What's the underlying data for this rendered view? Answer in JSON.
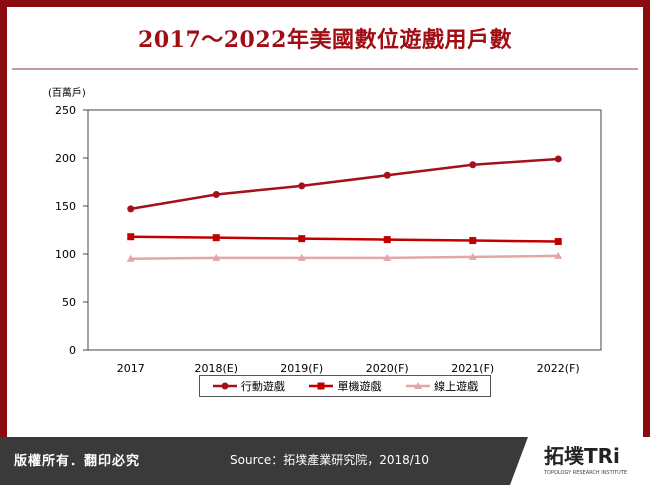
{
  "title": "2017～2022年美國數位遊戲用戶數",
  "footer": {
    "rights": "版權所有．翻印必究",
    "source": "Source：拓墣產業研究院，2018/10"
  },
  "logo": {
    "name": "拓墣TRi",
    "tagline": "TOPOLOGY RESEARCH INSTITUTE"
  },
  "colors": {
    "frame": "#8a0c10",
    "title": "#a00d12",
    "series_dark": "#a3121c",
    "series_red": "#c00000",
    "series_pink": "#e3a6a6",
    "footer_bg": "#3a3a3a"
  },
  "chart_data": {
    "type": "line",
    "ylabel": "(百萬戶)",
    "categories": [
      "2017",
      "2018(E)",
      "2019(F)",
      "2020(F)",
      "2021(F)",
      "2022(F)"
    ],
    "ylim": [
      0,
      250
    ],
    "yticks": [
      0,
      50,
      100,
      150,
      200,
      250
    ],
    "grid": false,
    "legend": "bottom",
    "series": [
      {
        "name": "行動遊戲",
        "values": [
          147,
          162,
          171,
          182,
          193,
          199
        ],
        "color": "#a3121c",
        "marker": "circle"
      },
      {
        "name": "單機遊戲",
        "values": [
          118,
          117,
          116,
          115,
          114,
          113
        ],
        "color": "#c00000",
        "marker": "square"
      },
      {
        "name": "線上遊戲",
        "values": [
          95,
          96,
          96,
          96,
          97,
          98
        ],
        "color": "#e3a6a6",
        "marker": "triangle"
      }
    ]
  }
}
